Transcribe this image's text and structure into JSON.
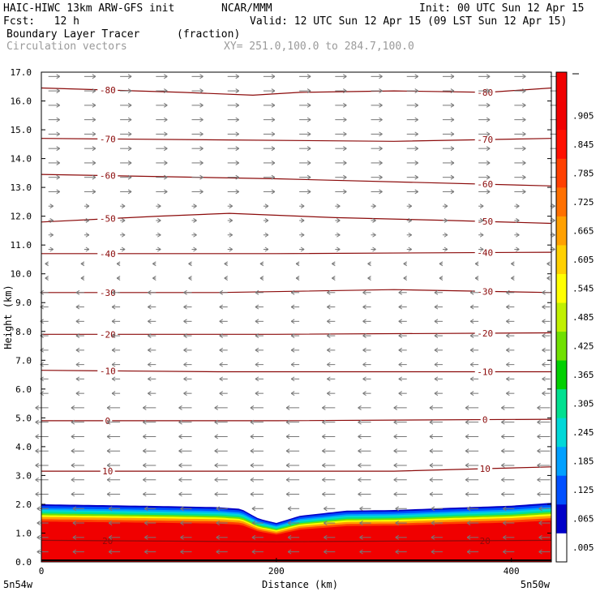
{
  "header": {
    "model": "HAIC-HIWC 13km ARW-GFS init",
    "org": "NCAR/MMM",
    "init": "Init: 00 UTC Sun 12 Apr 15",
    "fcst": "Fcst:   12 h",
    "valid": "Valid: 12 UTC Sun 12 Apr 15 (09 LST Sun 12 Apr 15)",
    "field": "Boundary Layer Tracer",
    "units": "(fraction)",
    "vectors": "Circulation vectors",
    "xy": "XY= 251.0,100.0 to 284.7,100.0"
  },
  "chart_data": {
    "type": "heatmap",
    "title": "Boundary Layer Tracer",
    "xlabel": "Distance (km)",
    "ylabel": "Height (km)",
    "xlim": [
      0,
      434
    ],
    "ylim": [
      0,
      17
    ],
    "x_ticks": [
      "0",
      "200",
      "400"
    ],
    "x_tick_values": [
      0,
      200,
      400
    ],
    "x_end_labels": {
      "left": "5n54w",
      "right": "5n50w"
    },
    "y_ticks": [
      "0.0",
      "1.0",
      "2.0",
      "3.0",
      "4.0",
      "5.0",
      "6.0",
      "7.0",
      "8.0",
      "9.0",
      "10.0",
      "11.0",
      "12.0",
      "13.0",
      "14.0",
      "15.0",
      "16.0",
      "17.0"
    ],
    "colorbar": {
      "labels": [
        ".005",
        ".065",
        ".125",
        ".185",
        ".245",
        ".305",
        ".365",
        ".425",
        ".485",
        ".545",
        ".605",
        ".665",
        ".725",
        ".785",
        ".845",
        ".905"
      ],
      "colors": [
        "#ffffff",
        "#0000c8",
        "#0050ff",
        "#00a0ff",
        "#00d8d8",
        "#00e090",
        "#00d000",
        "#70e000",
        "#c0f000",
        "#ffff00",
        "#ffd000",
        "#ffa000",
        "#ff7000",
        "#ff4000",
        "#ff1000",
        "#f00000",
        "#f00000"
      ]
    },
    "tracer_top_km": [
      [
        0,
        2.0
      ],
      [
        50,
        1.97
      ],
      [
        100,
        1.94
      ],
      [
        150,
        1.9
      ],
      [
        170,
        1.84
      ],
      [
        185,
        1.5
      ],
      [
        200,
        1.35
      ],
      [
        220,
        1.6
      ],
      [
        260,
        1.78
      ],
      [
        300,
        1.8
      ],
      [
        350,
        1.88
      ],
      [
        400,
        1.95
      ],
      [
        434,
        2.05
      ]
    ],
    "isotherms": [
      {
        "label": "-80",
        "points": [
          [
            0,
            16.45
          ],
          [
            120,
            16.3
          ],
          [
            180,
            16.2
          ],
          [
            220,
            16.3
          ],
          [
            300,
            16.35
          ],
          [
            380,
            16.3
          ],
          [
            434,
            16.45
          ]
        ]
      },
      {
        "label": "-70",
        "points": [
          [
            0,
            14.7
          ],
          [
            150,
            14.65
          ],
          [
            300,
            14.6
          ],
          [
            434,
            14.7
          ]
        ]
      },
      {
        "label": "-60",
        "points": [
          [
            0,
            13.45
          ],
          [
            200,
            13.3
          ],
          [
            434,
            13.05
          ]
        ]
      },
      {
        "label": "-50",
        "points": [
          [
            0,
            11.8
          ],
          [
            100,
            12.0
          ],
          [
            160,
            12.1
          ],
          [
            250,
            11.95
          ],
          [
            350,
            11.85
          ],
          [
            434,
            11.75
          ]
        ]
      },
      {
        "label": "-40",
        "points": [
          [
            0,
            10.7
          ],
          [
            200,
            10.7
          ],
          [
            434,
            10.75
          ]
        ]
      },
      {
        "label": "-30",
        "points": [
          [
            0,
            9.35
          ],
          [
            150,
            9.35
          ],
          [
            300,
            9.45
          ],
          [
            434,
            9.35
          ]
        ]
      },
      {
        "label": "-20",
        "points": [
          [
            0,
            7.9
          ],
          [
            200,
            7.9
          ],
          [
            434,
            7.95
          ]
        ]
      },
      {
        "label": "-10",
        "points": [
          [
            0,
            6.65
          ],
          [
            150,
            6.6
          ],
          [
            300,
            6.6
          ],
          [
            434,
            6.6
          ]
        ]
      },
      {
        "label": "0",
        "points": [
          [
            0,
            4.9
          ],
          [
            200,
            4.9
          ],
          [
            434,
            4.95
          ]
        ]
      },
      {
        "label": "10",
        "points": [
          [
            0,
            3.15
          ],
          [
            150,
            3.15
          ],
          [
            300,
            3.15
          ],
          [
            434,
            3.3
          ]
        ]
      },
      {
        "label": "20",
        "points": [
          [
            0,
            0.75
          ],
          [
            200,
            0.7
          ],
          [
            434,
            0.75
          ]
        ]
      }
    ]
  }
}
